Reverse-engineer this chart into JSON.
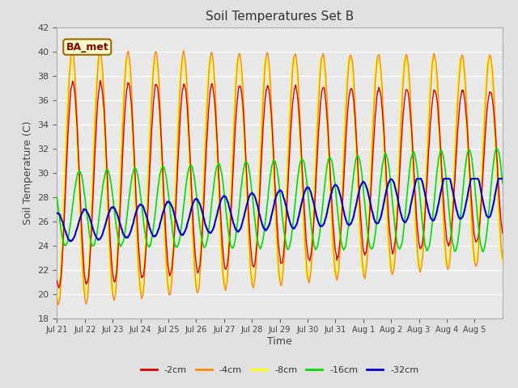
{
  "title": "Soil Temperatures Set B",
  "xlabel": "Time",
  "ylabel": "Soil Temperature (C)",
  "ylim": [
    18,
    42
  ],
  "yticks": [
    18,
    20,
    22,
    24,
    26,
    28,
    30,
    32,
    34,
    36,
    38,
    40,
    42
  ],
  "bg_color": "#e0e0e0",
  "plot_bg_color": "#e8e8e8",
  "grid_color": "#ffffff",
  "legend_labels": [
    "-2cm",
    "-4cm",
    "-8cm",
    "-16cm",
    "-32cm"
  ],
  "legend_colors": [
    "#dd0000",
    "#ff8800",
    "#ffff00",
    "#00dd00",
    "#0000cc"
  ],
  "annotation_text": "BA_met",
  "annotation_bg": "#ffffcc",
  "annotation_border": "#996600",
  "tick_labels": [
    "Jul 21",
    "Jul 22",
    "Jul 23",
    "Jul 24",
    "Jul 25",
    "Jul 26",
    "Jul 27",
    "Jul 28",
    "Jul 29",
    "Jul 30",
    "Jul 31",
    "Aug 1",
    "Aug 2",
    "Aug 3",
    "Aug 4",
    "Aug 5"
  ]
}
